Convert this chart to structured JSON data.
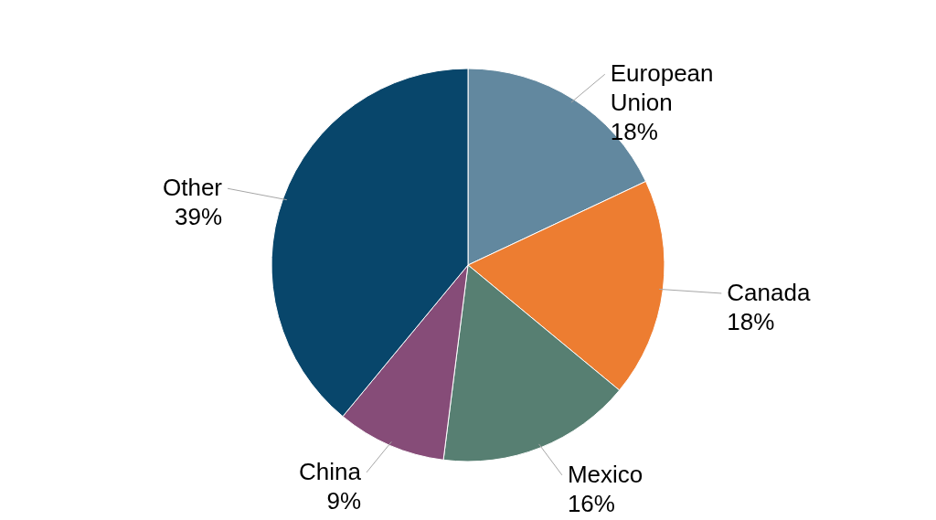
{
  "chart_data": {
    "type": "pie",
    "categories": [
      "European Union",
      "Canada",
      "Mexico",
      "China",
      "Other"
    ],
    "values": [
      18,
      18,
      16,
      9,
      39
    ],
    "value_labels": [
      "18%",
      "18%",
      "16%",
      "9%",
      "39%"
    ],
    "colors": [
      "#62889f",
      "#ed7d31",
      "#577f72",
      "#864c78",
      "#08466b"
    ]
  }
}
